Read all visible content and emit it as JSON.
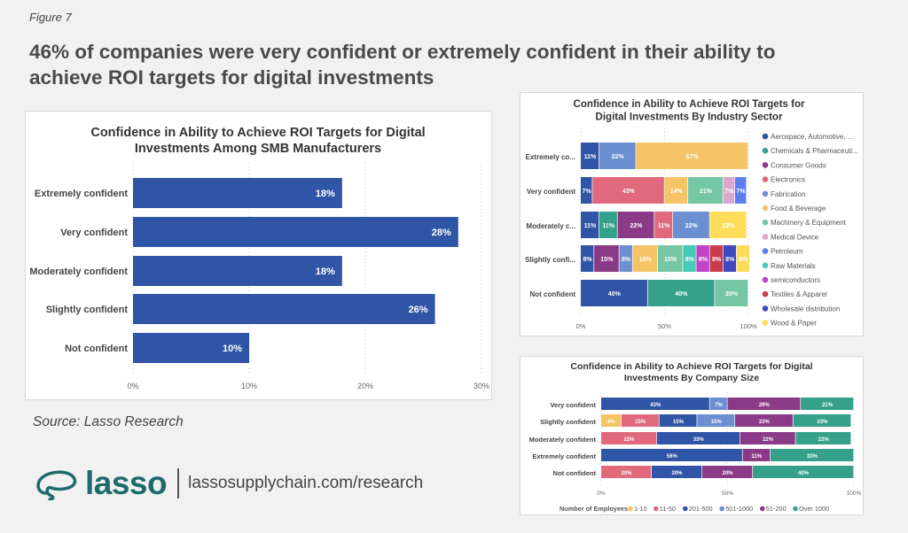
{
  "figure_label": "Figure 7",
  "headline": "46% of companies were very confident or extremely confident in their ability to achieve ROI targets for digital investments",
  "source": "Source: Lasso Research",
  "logo": {
    "wordmark": "lasso",
    "url": "lassosupplychain.com/research",
    "color": "#1d6b6b"
  },
  "chart_data": [
    {
      "type": "bar",
      "orientation": "horizontal",
      "title": "Confidence in Ability to Achieve ROI Targets for Digital Investments Among SMB Manufacturers",
      "categories": [
        "Extremely confident",
        "Very confident",
        "Moderately confident",
        "Slightly confident",
        "Not confident"
      ],
      "values": [
        18,
        28,
        18,
        26,
        10
      ],
      "data_labels": [
        "18%",
        "28%",
        "18%",
        "26%",
        "10%"
      ],
      "xlim": [
        0,
        30
      ],
      "xticks": [
        "0%",
        "10%",
        "20%",
        "30%"
      ],
      "color": "#3155a6",
      "grid": "vertical dotted"
    },
    {
      "type": "bar",
      "stacked": true,
      "orientation": "horizontal",
      "title": "Confidence in Ability to Achieve ROI Targets for Digital Investments By Industry Sector",
      "categories": [
        "Extremely co...",
        "Very confident",
        "Moderately c...",
        "Slightly confi...",
        "Not confident"
      ],
      "xlim": [
        0,
        100
      ],
      "xticks": [
        "0%",
        "50%",
        "100%"
      ],
      "legend_position": "right",
      "series": [
        {
          "name": "Aerospace, Automotive, ...",
          "color": "#3155a6",
          "values": [
            11,
            7,
            11,
            8,
            40
          ]
        },
        {
          "name": "Chemicals & Pharmaceuti...",
          "color": "#36a18b",
          "values": [
            null,
            null,
            11,
            null,
            40
          ]
        },
        {
          "name": "Consumer Goods",
          "color": "#8b3a87",
          "values": [
            null,
            null,
            22,
            15,
            null
          ]
        },
        {
          "name": "Electronics",
          "color": "#e06a7c",
          "values": [
            null,
            43,
            11,
            null,
            null
          ]
        },
        {
          "name": "Fabrication",
          "color": "#6b8fd0",
          "values": [
            22,
            null,
            22,
            8,
            null
          ]
        },
        {
          "name": "Food & Beverage",
          "color": "#f5c466",
          "values": [
            67,
            14,
            null,
            15,
            null
          ]
        },
        {
          "name": "Machinery & Equipment",
          "color": "#75c7a3",
          "values": [
            null,
            21,
            null,
            15,
            20
          ]
        },
        {
          "name": "Medical Device",
          "color": "#dca6d0",
          "values": [
            null,
            7,
            null,
            null,
            null
          ]
        },
        {
          "name": "Petroleum",
          "color": "#5b7ff0",
          "values": [
            null,
            7,
            null,
            null,
            null
          ]
        },
        {
          "name": "Raw Materials",
          "color": "#47c9b8",
          "values": [
            null,
            null,
            null,
            8,
            null
          ]
        },
        {
          "name": "semiconductors",
          "color": "#c043c8",
          "values": [
            null,
            null,
            null,
            8,
            null
          ]
        },
        {
          "name": "Textiles & Apparel",
          "color": "#c83c4d",
          "values": [
            null,
            null,
            null,
            8,
            null
          ]
        },
        {
          "name": "Wholesale distribution",
          "color": "#4148c0",
          "values": [
            null,
            null,
            null,
            8,
            null
          ]
        },
        {
          "name": "Wood & Paper",
          "color": "#ffdc5a",
          "values": [
            null,
            null,
            22,
            8,
            null
          ]
        }
      ]
    },
    {
      "type": "bar",
      "stacked": true,
      "orientation": "horizontal",
      "title": "Confidence in Ability to Achieve ROI Targets for Digital Investments By Company Size",
      "categories": [
        "Very confident",
        "Slightly confident",
        "Moderately confident",
        "Extremely confident",
        "Not confident"
      ],
      "xlim": [
        0,
        100
      ],
      "xticks": [
        "0%",
        "50%",
        "100%"
      ],
      "legend_title": "Number of Employees",
      "legend_position": "bottom",
      "series": [
        {
          "name": "1-10",
          "color": "#f5c466",
          "values": [
            null,
            8,
            null,
            null,
            null
          ]
        },
        {
          "name": "11-50",
          "color": "#e06a7c",
          "values": [
            null,
            15,
            22,
            null,
            20
          ]
        },
        {
          "name": "201-500",
          "color": "#3155a6",
          "values": [
            43,
            15,
            33,
            56,
            20
          ]
        },
        {
          "name": "501-1000",
          "color": "#6b8fd0",
          "values": [
            7,
            15,
            null,
            null,
            null
          ]
        },
        {
          "name": "51-200",
          "color": "#8b3a87",
          "values": [
            29,
            23,
            22,
            11,
            20
          ]
        },
        {
          "name": "Over 1000",
          "color": "#36a18b",
          "values": [
            21,
            23,
            22,
            33,
            40
          ]
        }
      ]
    }
  ]
}
